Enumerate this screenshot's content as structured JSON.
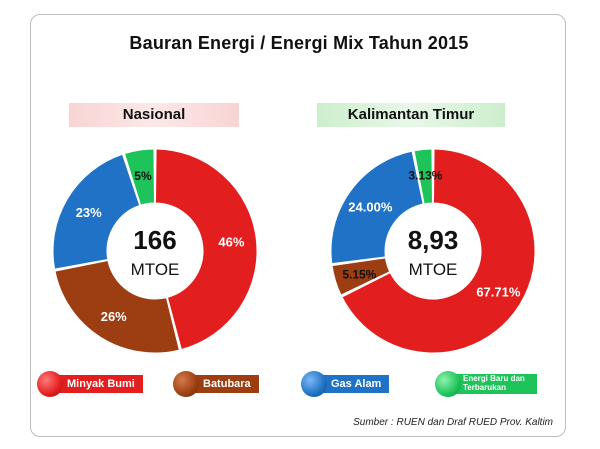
{
  "title": "Bauran Energi / Energi Mix  Tahun 2015",
  "source": "Sumber : RUEN dan Draf RUED Prov. Kaltim",
  "legend": [
    {
      "label": "Minyak Bumi",
      "color": "#e31e1e"
    },
    {
      "label": "Batubara",
      "color": "#9c3e12"
    },
    {
      "label": "Gas Alam",
      "color": "#1f72c5"
    },
    {
      "label": "Energi Baru dan Terbarukan",
      "color": "#1ec45a"
    }
  ],
  "chart_data": [
    {
      "type": "pie",
      "title": "Nasional",
      "center_value": "166",
      "center_unit": "MTOE",
      "categories": [
        "Minyak Bumi",
        "Batubara",
        "Gas Alam",
        "Energi Baru dan Terbarukan"
      ],
      "values": [
        46,
        26,
        23,
        5
      ],
      "labels": [
        "46%",
        "26%",
        "23%",
        "5%"
      ],
      "colors": [
        "#e31e1e",
        "#9c3e12",
        "#1f72c5",
        "#1ec45a"
      ]
    },
    {
      "type": "pie",
      "title": "Kalimantan Timur",
      "center_value": "8,93",
      "center_unit": "MTOE",
      "categories": [
        "Minyak Bumi",
        "Batubara",
        "Gas Alam",
        "Energi Baru dan Terbarukan"
      ],
      "values": [
        67.71,
        5.15,
        24.0,
        3.13
      ],
      "labels": [
        "67.71%",
        "5.15%",
        "24.00%",
        "3.13%"
      ],
      "colors": [
        "#e31e1e",
        "#9c3e12",
        "#1f72c5",
        "#1ec45a"
      ]
    }
  ]
}
